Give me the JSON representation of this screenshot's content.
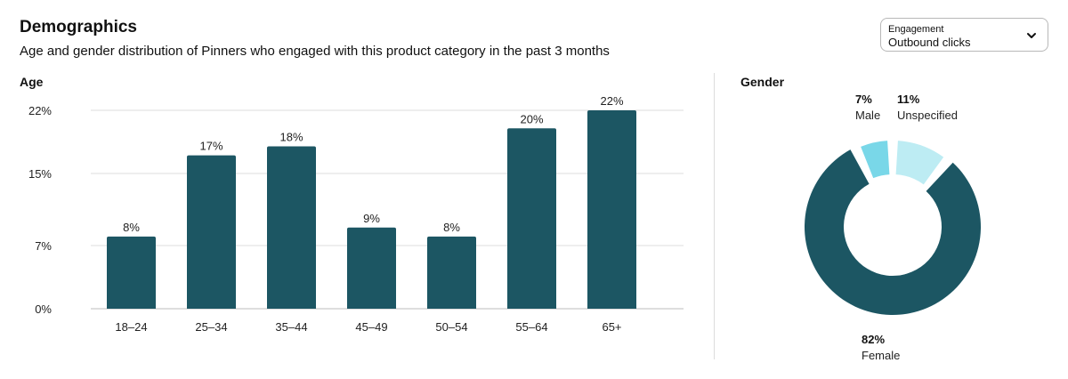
{
  "header": {
    "title": "Demographics",
    "subtitle": "Age and gender distribution of Pinners who engaged with this product category in the past 3 months"
  },
  "engagement_dropdown": {
    "label": "Engagement",
    "selected": "Outbound clicks",
    "icon": "chevron-down-icon"
  },
  "colors": {
    "bar": "#1c5663",
    "male": "#79d7e8",
    "unspecified": "#bdecf3",
    "female": "#1c5663",
    "grid": "#dedede"
  },
  "chart_data": [
    {
      "type": "bar",
      "title": "Age",
      "categories": [
        "18–24",
        "25–34",
        "35–44",
        "45–49",
        "50–54",
        "55–64",
        "65+"
      ],
      "values": [
        8,
        17,
        18,
        9,
        8,
        20,
        22
      ],
      "data_labels": [
        "8%",
        "17%",
        "18%",
        "9%",
        "8%",
        "20%",
        "22%"
      ],
      "yticks": [
        0,
        7,
        15,
        22
      ],
      "ytick_labels": [
        "0%",
        "7%",
        "15%",
        "22%"
      ],
      "ylim": [
        0,
        22
      ],
      "grid": true
    },
    {
      "type": "pie",
      "title": "Gender",
      "slices": [
        {
          "label": "Male",
          "value": 7,
          "display": "7%"
        },
        {
          "label": "Unspecified",
          "value": 11,
          "display": "11%"
        },
        {
          "label": "Female",
          "value": 82,
          "display": "82%"
        }
      ]
    }
  ]
}
